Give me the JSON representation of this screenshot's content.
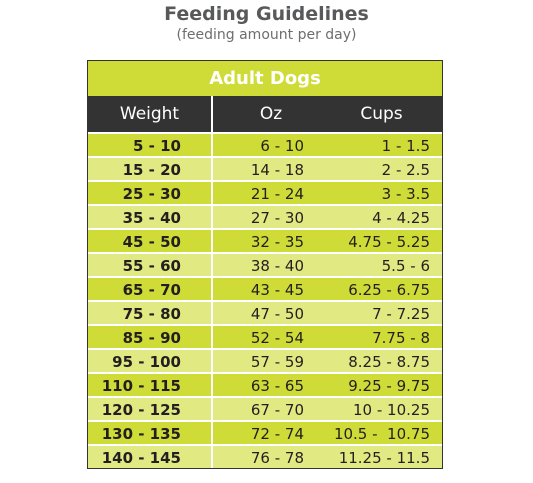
{
  "header": {
    "title": "Feeding Guidelines",
    "subtitle": "(feeding amount per day)"
  },
  "table": {
    "title": "Adult Dogs",
    "columns": [
      "Weight",
      "Oz",
      "Cups"
    ],
    "rows": [
      [
        "5 - 10",
        "6 - 10",
        "1 - 1.5"
      ],
      [
        "15 - 20",
        "14 - 18",
        "2 - 2.5"
      ],
      [
        "25 - 30",
        "21 - 24",
        "3 - 3.5"
      ],
      [
        "35 - 40",
        "27 - 30",
        "4 - 4.25"
      ],
      [
        "45 - 50",
        "32 - 35",
        "4.75 - 5.25"
      ],
      [
        "55 - 60",
        "38 - 40",
        "5.5 - 6"
      ],
      [
        "65 - 70",
        "43 - 45",
        "6.25 - 6.75"
      ],
      [
        "75 - 80",
        "47 - 50",
        "7 - 7.25"
      ],
      [
        "85 - 90",
        "52 - 54",
        "7.75 - 8"
      ],
      [
        "95 - 100",
        "57 - 59",
        "8.25 - 8.75"
      ],
      [
        "110 - 115",
        "63 - 65",
        "9.25 - 9.75"
      ],
      [
        "120 - 125",
        "67 - 70",
        "10 - 10.25"
      ],
      [
        "130 - 135",
        "72 - 74",
        "10.5 -  10.75"
      ],
      [
        "140 - 145",
        "76 - 78",
        "11.25 - 11.5"
      ]
    ]
  }
}
